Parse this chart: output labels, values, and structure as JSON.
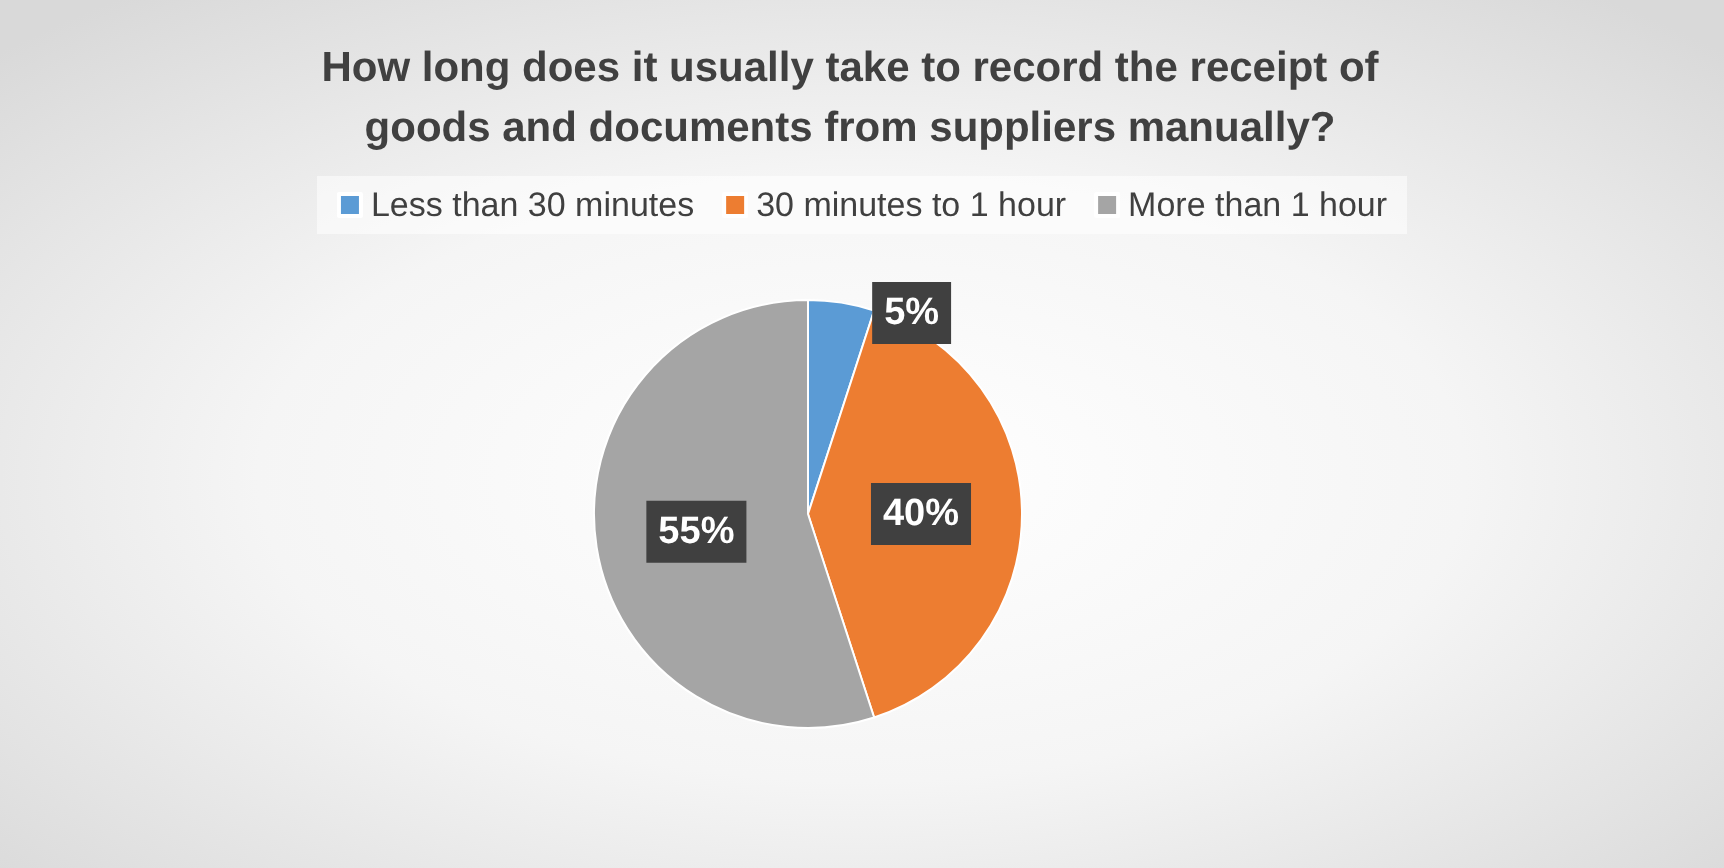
{
  "chart_data": {
    "type": "pie",
    "title": "How long does it usually take to record the receipt of\ngoods and documents from suppliers manually?",
    "categories": [
      "Less than 30 minutes",
      "30 minutes to 1 hour",
      "More than 1 hour"
    ],
    "values": [
      5,
      40,
      55
    ],
    "colors": [
      "#5b9bd5",
      "#ed7d31",
      "#a5a5a5"
    ],
    "value_labels": [
      "5%",
      "40%",
      "55%"
    ],
    "legend": "top"
  }
}
